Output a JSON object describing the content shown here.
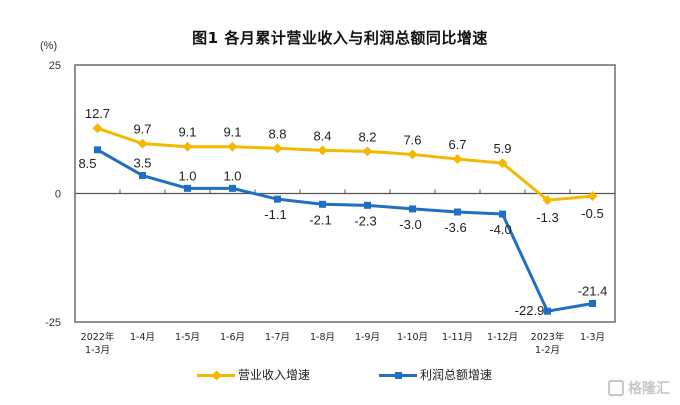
{
  "title": "图1  各月累计营业收入与利润总额同比增速",
  "unit_label": "(%)",
  "legend": {
    "revenue_label": "营业收入增速",
    "profit_label": "利润总额增速"
  },
  "watermark": "格隆汇",
  "colors": {
    "revenue": "#F5B800",
    "profit": "#1F6FC5",
    "axis": "#555555"
  },
  "chart_data": {
    "type": "line",
    "title": "图1  各月累计营业收入与利润总额同比增速",
    "xlabel": "",
    "ylabel": "(%)",
    "ylim": [
      -25,
      25
    ],
    "yticks": [
      25,
      0,
      -25
    ],
    "grid": false,
    "legend_position": "bottom",
    "categories": [
      "2022年 1-3月",
      "1-4月",
      "1-5月",
      "1-6月",
      "1-7月",
      "1-8月",
      "1-9月",
      "1-10月",
      "1-11月",
      "1-12月",
      "2023年 1-2月",
      "1-3月"
    ],
    "series": [
      {
        "name": "营业收入增速",
        "values": [
          12.7,
          9.7,
          9.1,
          9.1,
          8.8,
          8.4,
          8.2,
          7.6,
          6.7,
          5.9,
          -1.3,
          -0.5
        ]
      },
      {
        "name": "利润总额增速",
        "values": [
          8.5,
          3.5,
          1.0,
          1.0,
          -1.1,
          -2.1,
          -2.3,
          -3.0,
          -3.6,
          -4.0,
          -22.9,
          -21.4
        ]
      }
    ]
  }
}
